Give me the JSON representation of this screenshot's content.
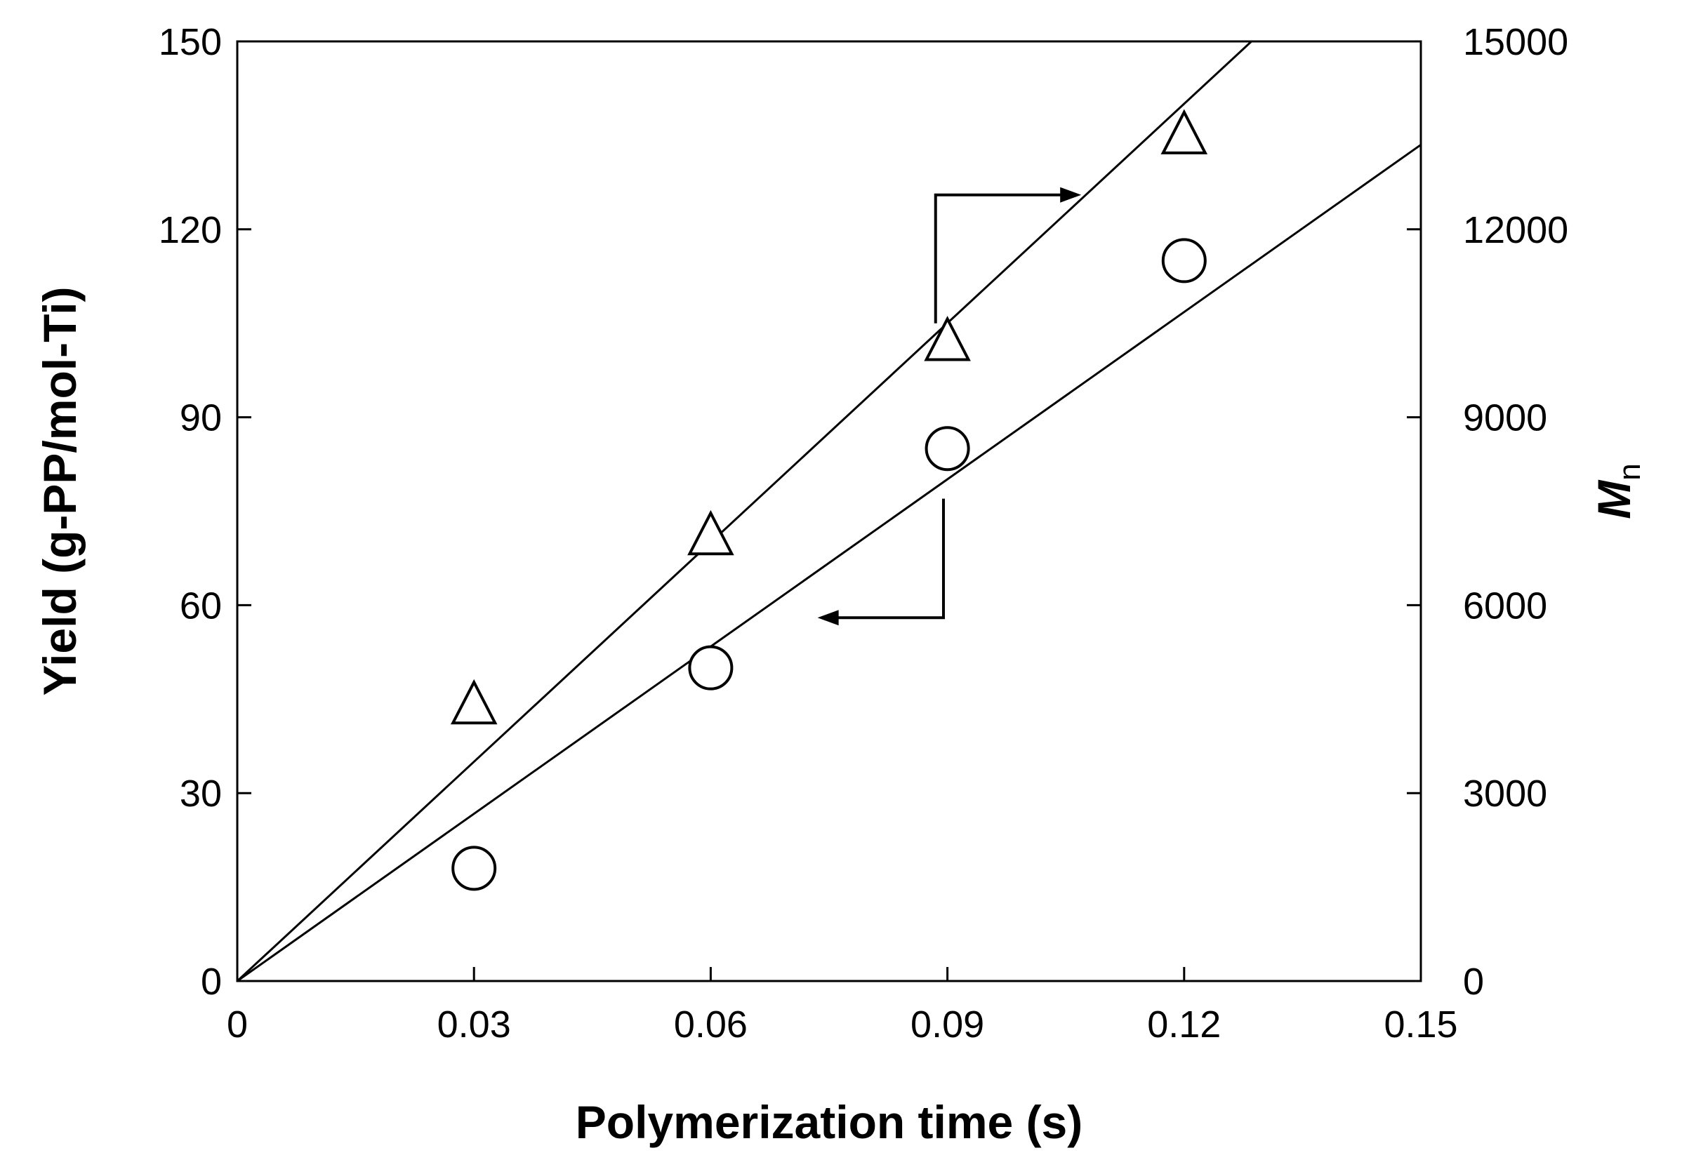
{
  "chart_data": {
    "type": "scatter",
    "xlabel": "Polymerization time (s)",
    "ylabel": "Yield (g-PP/mol-Ti)",
    "y2label_main": "M",
    "y2label_sub": "n",
    "xlim": [
      0,
      0.15
    ],
    "ylim": [
      0,
      150
    ],
    "y2lim": [
      0,
      15000
    ],
    "x_ticks": [
      "0",
      "0.03",
      "0.06",
      "0.09",
      "0.12",
      "0.15"
    ],
    "y_ticks": [
      "0",
      "30",
      "60",
      "90",
      "120",
      "150"
    ],
    "y2_ticks": [
      "0",
      "3000",
      "6000",
      "9000",
      "12000",
      "15000"
    ],
    "grid": false,
    "series": [
      {
        "marker": "circle",
        "axis": "left",
        "x": [
          0.03,
          0.06,
          0.09,
          0.12
        ],
        "y": [
          18,
          50,
          85,
          115
        ],
        "fit_slope": 890
      },
      {
        "marker": "triangle",
        "axis": "right",
        "x": [
          0.03,
          0.06,
          0.09,
          0.12
        ],
        "y": [
          4400,
          7100,
          10200,
          13500
        ],
        "fit_slope": 116700
      }
    ],
    "colors": {
      "ink": "#000000",
      "background": "#ffffff"
    }
  }
}
